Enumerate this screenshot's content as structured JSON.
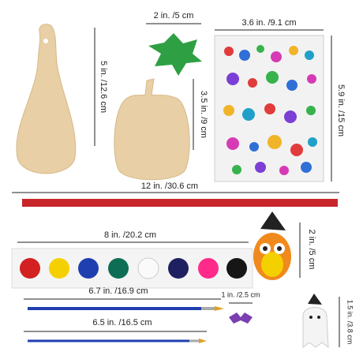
{
  "dimensions": [
    "5 in. /12.6 cm",
    "2 in. /5 cm",
    "3.6 in. /9.1 cm",
    "5.9 in. /15 cm",
    "3.5 in. /9 cm",
    "12 in. /30.6 cm",
    "8 in. /20.2 cm",
    "2 in. /5 cm",
    "6.7 in. /16.9 cm",
    "6.5 in. /16.5 cm",
    "1 in. /2.5 cm",
    "1.5 in. /3.8 cm"
  ]
}
